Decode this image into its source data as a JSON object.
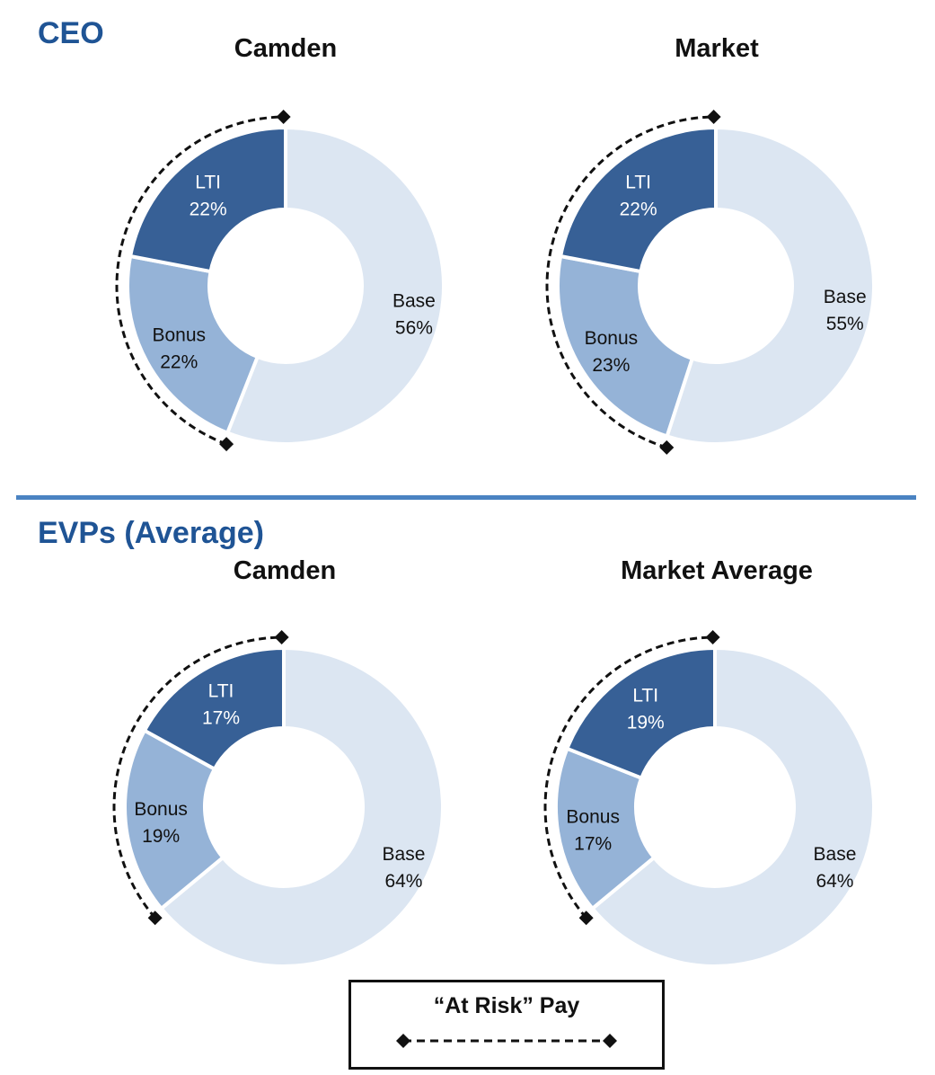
{
  "sections": {
    "ceo": {
      "title": "CEO"
    },
    "evp": {
      "title": "EVPs (Average)"
    }
  },
  "colors": {
    "title_blue": "#1f5495",
    "divider": "#4a83c2",
    "base": "#dce6f2",
    "bonus": "#95b3d7",
    "lti": "#376096",
    "label_dark": "#111111",
    "label_light": "#ffffff"
  },
  "chart_data": [
    {
      "type": "donut",
      "section": "CEO",
      "title": "Camden",
      "slices": [
        {
          "name": "Base",
          "label": "Base",
          "value": 56,
          "value_label": "56%"
        },
        {
          "name": "Bonus",
          "label": "Bonus",
          "value": 22,
          "value_label": "22%"
        },
        {
          "name": "LTI",
          "label": "LTI",
          "value": 22,
          "value_label": "22%"
        }
      ],
      "at_risk_arc": [
        "Bonus",
        "LTI"
      ]
    },
    {
      "type": "donut",
      "section": "CEO",
      "title": "Market",
      "slices": [
        {
          "name": "Base",
          "label": "Base",
          "value": 55,
          "value_label": "55%"
        },
        {
          "name": "Bonus",
          "label": "Bonus",
          "value": 23,
          "value_label": "23%"
        },
        {
          "name": "LTI",
          "label": "LTI",
          "value": 22,
          "value_label": "22%"
        }
      ],
      "at_risk_arc": [
        "Bonus",
        "LTI"
      ]
    },
    {
      "type": "donut",
      "section": "EVPs (Average)",
      "title": "Camden",
      "slices": [
        {
          "name": "Base",
          "label": "Base",
          "value": 64,
          "value_label": "64%"
        },
        {
          "name": "Bonus",
          "label": "Bonus",
          "value": 19,
          "value_label": "19%"
        },
        {
          "name": "LTI",
          "label": "LTI",
          "value": 17,
          "value_label": "17%"
        }
      ],
      "at_risk_arc": [
        "Bonus",
        "LTI"
      ]
    },
    {
      "type": "donut",
      "section": "EVPs (Average)",
      "title": "Market Average",
      "slices": [
        {
          "name": "Base",
          "label": "Base",
          "value": 64,
          "value_label": "64%"
        },
        {
          "name": "Bonus",
          "label": "Bonus",
          "value": 17,
          "value_label": "17%"
        },
        {
          "name": "LTI",
          "label": "LTI",
          "value": 19,
          "value_label": "19%"
        }
      ],
      "at_risk_arc": [
        "Bonus",
        "LTI"
      ]
    }
  ],
  "legend": {
    "label": "“At Risk” Pay",
    "marker": "dashed-line-diamond-ends"
  }
}
